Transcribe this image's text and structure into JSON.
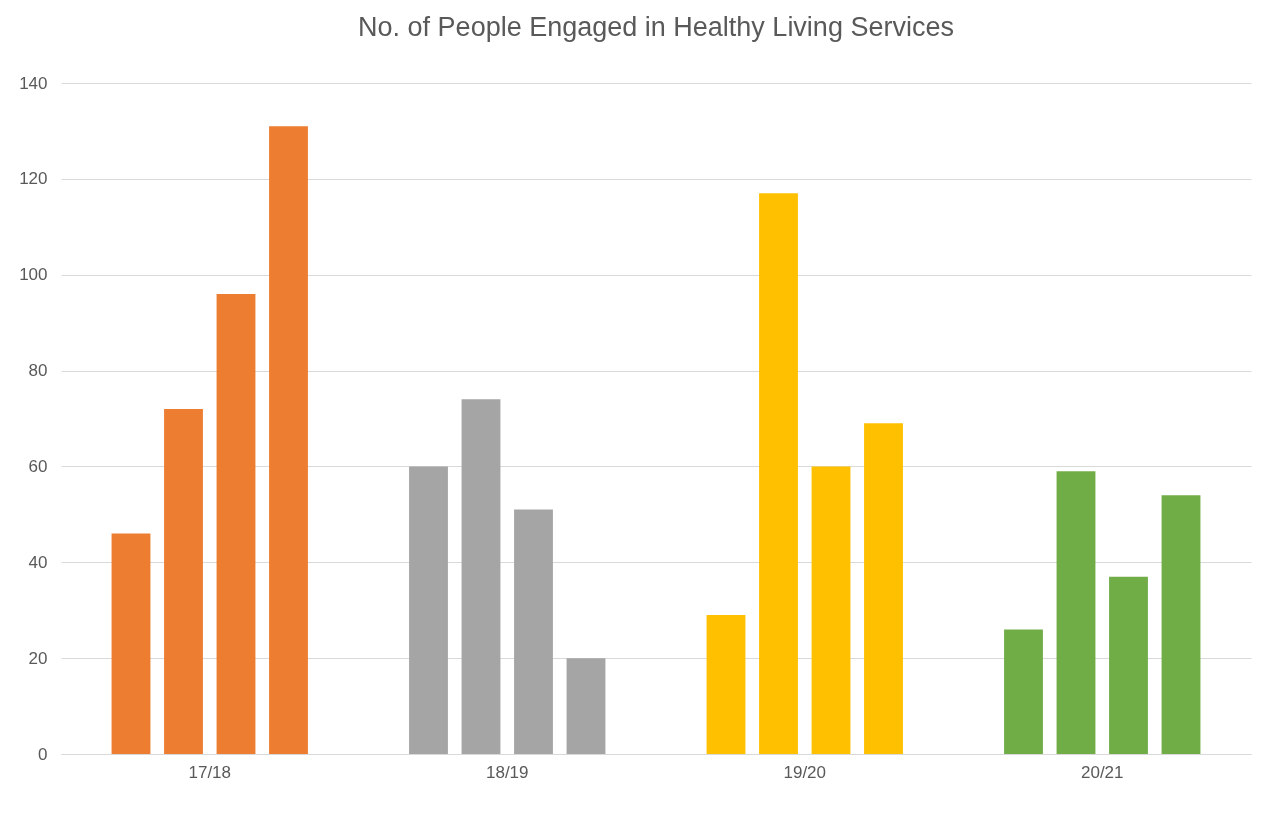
{
  "chart_data": {
    "type": "bar",
    "title": "No. of People Engaged in Healthy Living Services",
    "categories": [
      "17/18",
      "18/19",
      "19/20",
      "20/21"
    ],
    "series": [
      {
        "colors": [
          "#ed7d31",
          "#a5a5a5",
          "#ffc000",
          "#70ad47"
        ],
        "values": [
          46,
          60,
          29,
          26
        ]
      },
      {
        "colors": [
          "#ed7d31",
          "#a5a5a5",
          "#ffc000",
          "#70ad47"
        ],
        "values": [
          72,
          74,
          117,
          59
        ]
      },
      {
        "colors": [
          "#ed7d31",
          "#a5a5a5",
          "#ffc000",
          "#70ad47"
        ],
        "values": [
          96,
          51,
          60,
          37
        ]
      },
      {
        "colors": [
          "#ed7d31",
          "#a5a5a5",
          "#ffc000",
          "#70ad47"
        ],
        "values": [
          131,
          20,
          69,
          54
        ]
      }
    ],
    "ylim": [
      0,
      140
    ],
    "yticks": [
      0,
      20,
      40,
      60,
      80,
      100,
      120,
      140
    ],
    "grid": "y"
  }
}
